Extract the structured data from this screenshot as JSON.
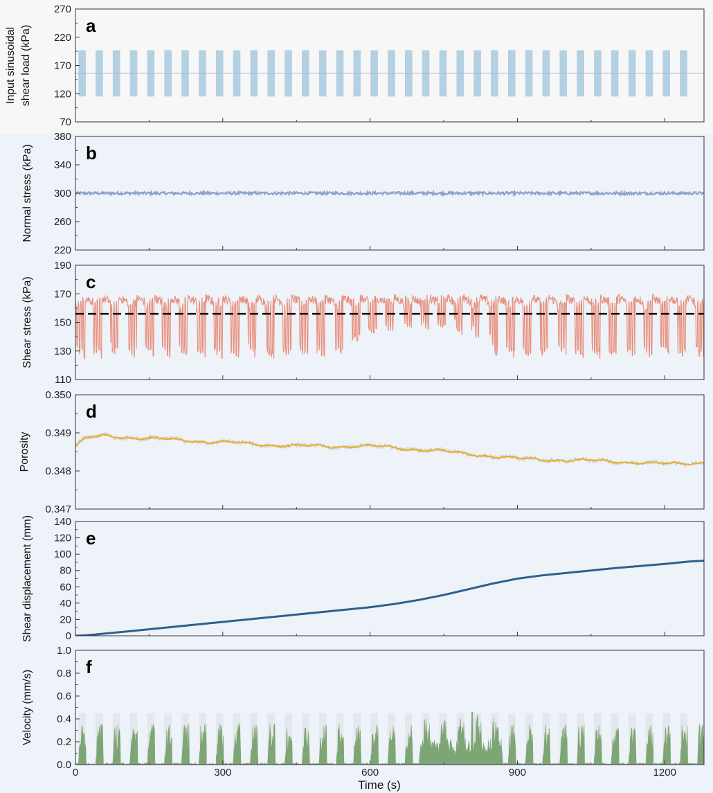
{
  "chart_data": [
    {
      "id": "a",
      "type": "area",
      "panel_label": "a",
      "ylabel": [
        "Input sinusoidal",
        "shear load (kPa)"
      ],
      "ylim": [
        70,
        270
      ],
      "yticks": [
        70,
        120,
        170,
        220,
        270
      ],
      "color": "#b4d0e3",
      "series": [
        {
          "name": "input sinusoidal shear load",
          "mean": 156,
          "amplitude": 41,
          "cycles": 36,
          "period_s": 35
        }
      ]
    },
    {
      "id": "b",
      "type": "line",
      "panel_label": "b",
      "ylabel": [
        "Normal stress (kPa)"
      ],
      "ylim": [
        220,
        380
      ],
      "yticks": [
        220,
        260,
        300,
        340,
        380
      ],
      "color": "#8da1c9",
      "series": [
        {
          "name": "normal stress",
          "mean": 300,
          "noise": 2
        }
      ]
    },
    {
      "id": "c",
      "type": "line",
      "panel_label": "c",
      "ylabel": [
        "Shear stress (kPa)"
      ],
      "ylim": [
        110,
        190
      ],
      "yticks": [
        110,
        130,
        150,
        170,
        190
      ],
      "color": "#e8917e",
      "series": [
        {
          "name": "shear stress",
          "peak": 168,
          "trough": 125
        }
      ],
      "reference_line": {
        "y": 156,
        "style": "dashed",
        "color": "#000000"
      }
    },
    {
      "id": "d",
      "type": "line",
      "panel_label": "d",
      "ylabel": [
        "Porosity"
      ],
      "ylim": [
        0.347,
        0.35
      ],
      "yticks": [
        0.347,
        0.348,
        0.349,
        0.35
      ],
      "ytick_labels": [
        "0.347",
        "0.348",
        "0.349",
        "0.350"
      ],
      "color": "#e6b030",
      "series": [
        {
          "name": "porosity",
          "x": [
            0,
            20,
            60,
            150,
            300,
            450,
            600,
            700,
            800,
            900,
            1000,
            1100,
            1200,
            1280
          ],
          "y": [
            0.34865,
            0.34885,
            0.34892,
            0.34885,
            0.34875,
            0.34865,
            0.34865,
            0.34857,
            0.34845,
            0.34832,
            0.34828,
            0.34825,
            0.34818,
            0.34823
          ]
        }
      ]
    },
    {
      "id": "e",
      "type": "line",
      "panel_label": "e",
      "ylabel": [
        "Shear displacement (mm)"
      ],
      "ylim": [
        0,
        140
      ],
      "yticks": [
        0,
        20,
        40,
        60,
        80,
        100,
        120,
        140
      ],
      "color": "#2e5f8f",
      "series": [
        {
          "name": "shear displacement",
          "x": [
            0,
            20,
            100,
            200,
            300,
            400,
            500,
            600,
            650,
            700,
            750,
            800,
            850,
            900,
            950,
            1000,
            1050,
            1100,
            1150,
            1200,
            1250,
            1280
          ],
          "y": [
            0,
            0.5,
            5,
            11,
            17,
            23,
            29,
            35,
            39,
            44,
            50,
            57,
            64,
            70,
            74,
            77,
            80,
            83,
            85.5,
            88,
            91,
            92
          ]
        }
      ]
    },
    {
      "id": "f",
      "type": "bar",
      "panel_label": "f",
      "ylabel": [
        "Velocity (mm/s)"
      ],
      "ylim": [
        0,
        1.0
      ],
      "yticks": [
        0,
        0.2,
        0.4,
        0.6,
        0.8,
        1.0
      ],
      "ytick_labels": [
        "0.0",
        "0.2",
        "0.4",
        "0.6",
        "0.8",
        "1.0"
      ],
      "color": "#7ea575",
      "series": [
        {
          "name": "velocity",
          "cycle_peak": 0.36,
          "peak_max": 0.46
        }
      ]
    }
  ],
  "shared_x": {
    "label": "Time (s)",
    "xlim": [
      0,
      1280
    ],
    "ticks": [
      0,
      300,
      600,
      900,
      1200
    ]
  }
}
